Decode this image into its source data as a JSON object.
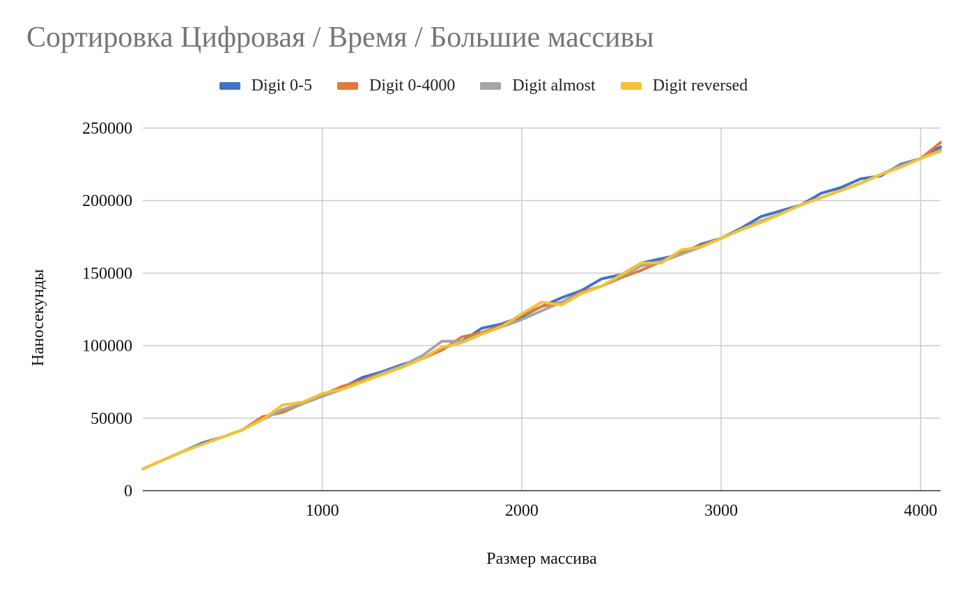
{
  "chart_data": {
    "type": "line",
    "title": "Сортировка Цифровая / Время / Большие массивы",
    "xlabel": "Размер массива",
    "ylabel": "Наносекунды",
    "xlim": [
      100,
      4100
    ],
    "ylim": [
      0,
      250000
    ],
    "x_ticks": [
      1000,
      2000,
      3000,
      4000
    ],
    "y_ticks": [
      0,
      50000,
      100000,
      150000,
      200000,
      250000
    ],
    "grid": true,
    "legend_position": "top",
    "x": [
      100,
      200,
      300,
      400,
      500,
      600,
      700,
      800,
      900,
      1000,
      1100,
      1200,
      1300,
      1400,
      1500,
      1600,
      1700,
      1800,
      1900,
      2000,
      2100,
      2200,
      2300,
      2400,
      2500,
      2600,
      2700,
      2800,
      2900,
      3000,
      3100,
      3200,
      3300,
      3400,
      3500,
      3600,
      3700,
      3800,
      3900,
      4000,
      4100
    ],
    "series": [
      {
        "name": "Digit 0-5",
        "color": "#4472C4",
        "values": [
          15000,
          21000,
          27000,
          33000,
          37000,
          42000,
          50000,
          55000,
          60000,
          65000,
          71000,
          78000,
          82000,
          87000,
          91000,
          98000,
          103000,
          112000,
          115000,
          120000,
          127000,
          133000,
          138000,
          146000,
          149000,
          157000,
          160000,
          163000,
          170000,
          174000,
          181000,
          189000,
          193000,
          197000,
          205000,
          209000,
          215000,
          217000,
          225000,
          229000,
          237000
        ]
      },
      {
        "name": "Digit 0-4000",
        "color": "#E07B39",
        "values": [
          15000,
          21000,
          27000,
          32000,
          37000,
          42000,
          51000,
          54000,
          60000,
          66000,
          72000,
          76000,
          81000,
          86000,
          91000,
          97000,
          106000,
          109000,
          114000,
          121000,
          127000,
          130000,
          137000,
          141000,
          147000,
          152000,
          158000,
          165000,
          169000,
          174000,
          180000,
          185000,
          191000,
          197000,
          202000,
          207000,
          212000,
          218000,
          224000,
          229000,
          240000
        ]
      },
      {
        "name": "Digit almost",
        "color": "#A5A5A5",
        "values": [
          15000,
          21000,
          27000,
          32000,
          37000,
          42000,
          49000,
          56000,
          60000,
          65000,
          70000,
          75000,
          81000,
          86000,
          93000,
          103000,
          103000,
          108000,
          113000,
          118000,
          124000,
          130000,
          136000,
          141000,
          148000,
          155000,
          158000,
          163000,
          168000,
          174000,
          180000,
          186000,
          191000,
          197000,
          202000,
          207000,
          212000,
          218000,
          224000,
          229000,
          235000
        ]
      },
      {
        "name": "Digit reversed",
        "color": "#F4C232",
        "values": [
          15000,
          21000,
          27000,
          32000,
          37000,
          42000,
          49000,
          59000,
          61000,
          67000,
          70000,
          75000,
          80000,
          85000,
          91000,
          99000,
          102000,
          108000,
          113000,
          122000,
          130000,
          128000,
          136000,
          141000,
          149000,
          157000,
          157000,
          166000,
          168000,
          174000,
          180000,
          185000,
          191000,
          197000,
          202000,
          207000,
          212000,
          218000,
          223000,
          229000,
          234000
        ]
      }
    ]
  }
}
